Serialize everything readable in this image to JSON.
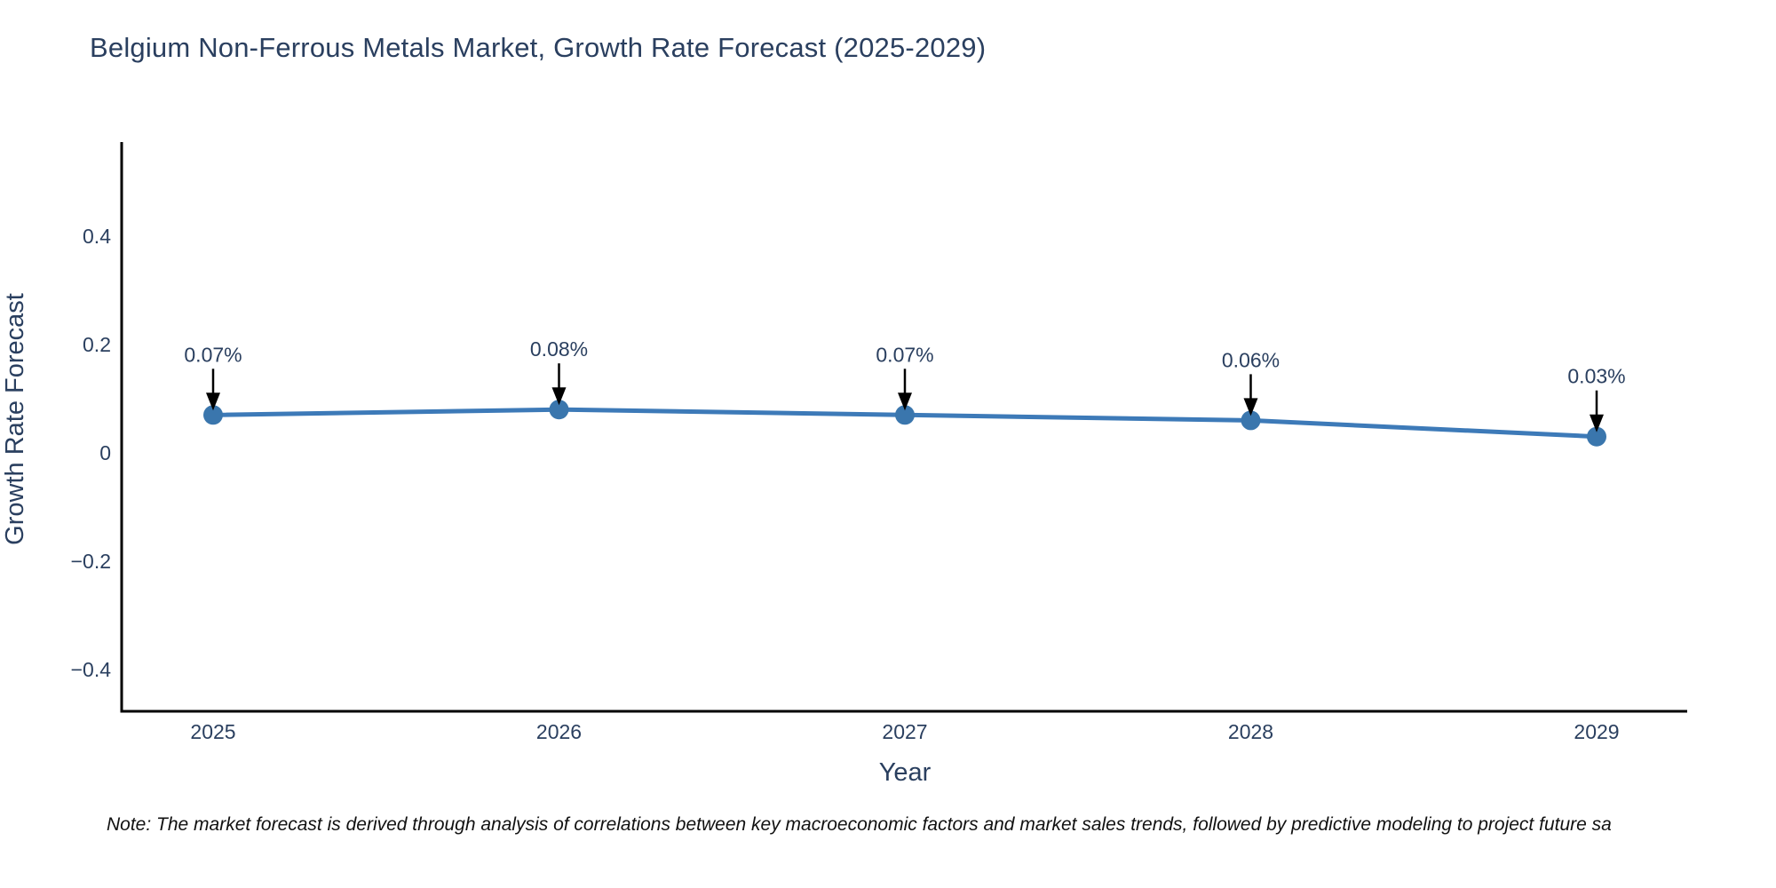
{
  "title": "Belgium Non-Ferrous Metals Market, Growth Rate Forecast (2025-2029)",
  "note": "Note: The market forecast is derived through analysis of correlations between key macroeconomic factors and market sales trends, followed by predictive modeling to project future sa",
  "chart_data": {
    "type": "line",
    "title": "Belgium Non-Ferrous Metals Market, Growth Rate Forecast (2025-2029)",
    "xlabel": "Year",
    "ylabel": "Growth Rate Forecast",
    "x": [
      2025,
      2026,
      2027,
      2028,
      2029
    ],
    "xticklabels": [
      "2025",
      "2026",
      "2027",
      "2028",
      "2029"
    ],
    "series": [
      {
        "name": "Growth Rate Forecast",
        "values": [
          0.07,
          0.08,
          0.07,
          0.06,
          0.03
        ],
        "point_labels": [
          "0.07%",
          "0.08%",
          "0.07%",
          "0.06%",
          "0.03%"
        ]
      }
    ],
    "yticks": [
      {
        "value": 0.4,
        "label": "0.4"
      },
      {
        "value": 0.2,
        "label": "0.2"
      },
      {
        "value": 0,
        "label": "0"
      },
      {
        "value": -0.2,
        "label": "−0.2"
      },
      {
        "value": -0.4,
        "label": "−0.4"
      }
    ],
    "ylim": [
      -0.48,
      0.57
    ],
    "grid": false,
    "legend": false,
    "colors": {
      "line": "#3d7ab8",
      "marker": "#3a76ad",
      "arrow": "#000000",
      "text": "#2a3f5f",
      "axis": "#000000",
      "background": "#ffffff"
    }
  }
}
